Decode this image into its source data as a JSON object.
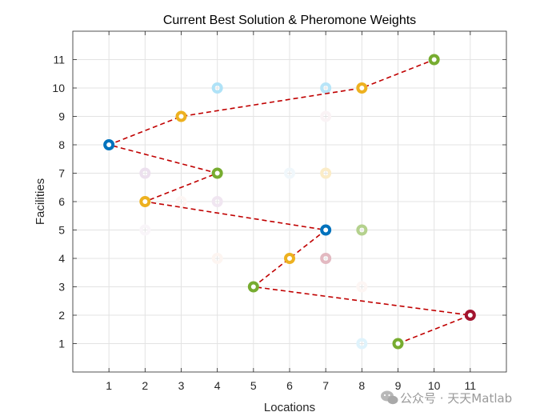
{
  "chart_data": {
    "type": "scatter",
    "title": "Current Best Solution & Pheromone Weights",
    "xlabel": "Locations",
    "ylabel": "Facilities",
    "xlim": [
      0,
      12
    ],
    "ylim": [
      0,
      12
    ],
    "xticks": [
      1,
      2,
      3,
      4,
      5,
      6,
      7,
      8,
      9,
      10,
      11
    ],
    "yticks": [
      1,
      2,
      3,
      4,
      5,
      6,
      7,
      8,
      9,
      10,
      11
    ],
    "grid": true,
    "legend": "none",
    "color_cycle": [
      "#0072BD",
      "#EDB120",
      "#77AC30",
      "#A2142F"
    ],
    "best_path": {
      "line_color": "#C00000",
      "line_style": "dashed",
      "points": [
        {
          "x": 9,
          "y": 1,
          "color": "#77AC30"
        },
        {
          "x": 11,
          "y": 2,
          "color": "#A2142F"
        },
        {
          "x": 5,
          "y": 3,
          "color": "#77AC30"
        },
        {
          "x": 6,
          "y": 4,
          "color": "#EDB120"
        },
        {
          "x": 7,
          "y": 5,
          "color": "#0072BD"
        },
        {
          "x": 2,
          "y": 6,
          "color": "#EDB120"
        },
        {
          "x": 4,
          "y": 7,
          "color": "#77AC30"
        },
        {
          "x": 1,
          "y": 8,
          "color": "#0072BD"
        },
        {
          "x": 3,
          "y": 9,
          "color": "#EDB120"
        },
        {
          "x": 8,
          "y": 10,
          "color": "#EDB120"
        },
        {
          "x": 10,
          "y": 11,
          "color": "#77AC30"
        }
      ]
    },
    "pheromone_points": [
      {
        "x": 8,
        "y": 1,
        "color": "#4DBEEE",
        "weight": 0.18
      },
      {
        "x": 7,
        "y": 4,
        "color": "#A2142F",
        "weight": 0.3
      },
      {
        "x": 4,
        "y": 4,
        "color": "#D95319",
        "weight": 0.06
      },
      {
        "x": 8,
        "y": 5,
        "color": "#77AC30",
        "weight": 0.55
      },
      {
        "x": 4,
        "y": 6,
        "color": "#7E2F8E",
        "weight": 0.12
      },
      {
        "x": 3,
        "y": 6,
        "color": "#D95319",
        "weight": 0.05
      },
      {
        "x": 2,
        "y": 7,
        "color": "#7E2F8E",
        "weight": 0.15
      },
      {
        "x": 6,
        "y": 7,
        "color": "#0072BD",
        "weight": 0.06
      },
      {
        "x": 7,
        "y": 7,
        "color": "#EDB120",
        "weight": 0.25
      },
      {
        "x": 7,
        "y": 9,
        "color": "#A2142F",
        "weight": 0.05
      },
      {
        "x": 4,
        "y": 10,
        "color": "#4DBEEE",
        "weight": 0.45
      },
      {
        "x": 7,
        "y": 10,
        "color": "#4DBEEE",
        "weight": 0.4
      },
      {
        "x": 8,
        "y": 3,
        "color": "#D95319",
        "weight": 0.05
      },
      {
        "x": 2,
        "y": 5,
        "color": "#7E2F8E",
        "weight": 0.05
      }
    ]
  },
  "watermark": {
    "text": "公众号 · 天天Matlab",
    "icon": "wechat-icon"
  }
}
